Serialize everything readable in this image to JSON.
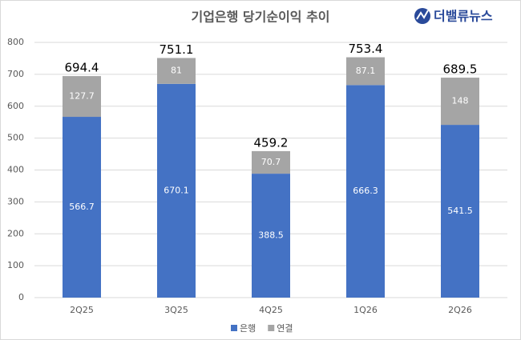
{
  "logo": "더밸류뉴스",
  "chart_data": {
    "type": "stacked-bar",
    "title": "기업은행 당기순이익 추이",
    "categories": [
      "2Q25",
      "3Q25",
      "4Q25",
      "1Q26",
      "2Q26"
    ],
    "series": [
      {
        "name": "은행",
        "color": "#4472c4",
        "values": [
          566.7,
          670.1,
          388.5,
          666.3,
          541.5
        ]
      },
      {
        "name": "연결",
        "color": "#a5a5a5",
        "values": [
          127.7,
          81,
          70.7,
          87.1,
          148
        ]
      }
    ],
    "totals": [
      694.4,
      751.1,
      459.2,
      753.4,
      689.5
    ],
    "ylim": [
      0,
      800
    ],
    "yticks": [
      0,
      100,
      200,
      300,
      400,
      500,
      600,
      700,
      800
    ],
    "grid": true,
    "legend": "bottom"
  }
}
